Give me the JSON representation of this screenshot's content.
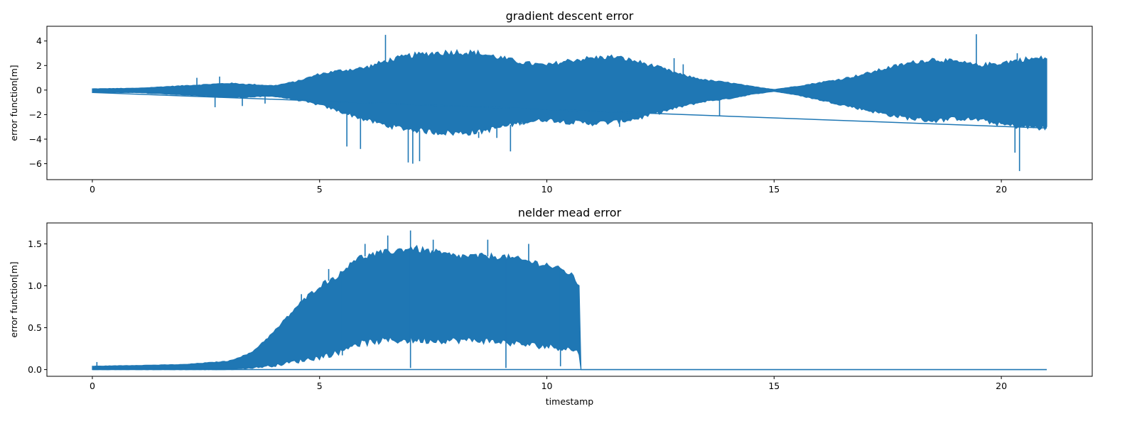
{
  "chart_data": [
    {
      "type": "line",
      "title": "gradient descent error",
      "xlabel": "",
      "ylabel": "error function[m]",
      "xlim": [
        -1,
        22
      ],
      "ylim": [
        -7.3,
        5.2
      ],
      "xticks": [
        0,
        5,
        10,
        15,
        20
      ],
      "yticks": [
        -6,
        -4,
        -2,
        0,
        2,
        4
      ],
      "xtick_labels": [
        "0",
        "5",
        "10",
        "15",
        "20"
      ],
      "ytick_labels": [
        "−6",
        "−4",
        "−2",
        "0",
        "2",
        "4"
      ],
      "grid": false,
      "color": "#1f77b4",
      "series_style": "dense oscillation; filled envelope shown",
      "envelope": {
        "x": [
          0,
          1,
          2,
          3,
          4,
          4.5,
          5,
          5.5,
          6,
          6.5,
          7,
          7.5,
          8,
          8.5,
          9,
          9.5,
          10,
          10.5,
          11,
          11.5,
          12,
          12.5,
          13,
          13.5,
          14,
          14.5,
          15,
          15.5,
          16,
          16.5,
          17,
          17.5,
          18,
          18.5,
          19,
          19.5,
          20,
          20.5,
          21
        ],
        "upper": [
          0.1,
          0.15,
          0.35,
          0.55,
          0.35,
          0.7,
          1.3,
          1.6,
          1.8,
          2.4,
          2.8,
          3.0,
          3.1,
          3.0,
          2.6,
          2.2,
          2.0,
          2.4,
          2.6,
          2.7,
          2.3,
          1.8,
          1.2,
          0.8,
          0.6,
          0.3,
          0.05,
          0.3,
          0.6,
          0.9,
          1.3,
          1.8,
          2.2,
          2.5,
          2.3,
          2.0,
          2.2,
          2.5,
          2.6
        ],
        "lower": [
          -0.2,
          -0.2,
          -0.4,
          -0.6,
          -0.5,
          -0.8,
          -1.2,
          -1.8,
          -2.4,
          -2.9,
          -3.2,
          -3.4,
          -3.5,
          -3.4,
          -3.0,
          -2.6,
          -2.4,
          -2.6,
          -2.7,
          -2.6,
          -2.3,
          -1.8,
          -1.3,
          -0.9,
          -0.7,
          -0.35,
          -0.1,
          -0.4,
          -0.8,
          -1.2,
          -1.6,
          -2.0,
          -2.3,
          -2.5,
          -2.3,
          -2.4,
          -2.8,
          -3.0,
          -3.1
        ]
      },
      "spikes": [
        {
          "x": 6.45,
          "y": 4.5
        },
        {
          "x": 5.6,
          "y": -4.6
        },
        {
          "x": 5.9,
          "y": -4.8
        },
        {
          "x": 6.95,
          "y": -5.9
        },
        {
          "x": 7.05,
          "y": -6.0
        },
        {
          "x": 7.2,
          "y": -5.8
        },
        {
          "x": 9.2,
          "y": -5.0
        },
        {
          "x": 12.8,
          "y": 2.6
        },
        {
          "x": 13.0,
          "y": 2.1
        },
        {
          "x": 13.8,
          "y": -2.1
        },
        {
          "x": 19.45,
          "y": 4.55
        },
        {
          "x": 20.3,
          "y": -5.1
        },
        {
          "x": 20.4,
          "y": -6.6
        },
        {
          "x": 20.35,
          "y": 3.0
        },
        {
          "x": 2.3,
          "y": 1.0
        },
        {
          "x": 2.8,
          "y": 1.1
        },
        {
          "x": 2.7,
          "y": -1.4
        },
        {
          "x": 3.3,
          "y": -1.3
        },
        {
          "x": 3.8,
          "y": -1.1
        },
        {
          "x": 9.45,
          "y": -2.8
        },
        {
          "x": 11.6,
          "y": -3.0
        },
        {
          "x": 8.9,
          "y": -3.9
        },
        {
          "x": 8.5,
          "y": -3.9
        }
      ]
    },
    {
      "type": "line",
      "title": "nelder mead error",
      "xlabel": "timestamp",
      "ylabel": "error function[m]",
      "xlim": [
        -1,
        22
      ],
      "ylim": [
        -0.08,
        1.75
      ],
      "xticks": [
        0,
        5,
        10,
        15,
        20
      ],
      "yticks": [
        0.0,
        0.5,
        1.0,
        1.5
      ],
      "xtick_labels": [
        "0",
        "5",
        "10",
        "15",
        "20"
      ],
      "ytick_labels": [
        "0.0",
        "0.5",
        "1.0",
        "1.5"
      ],
      "grid": false,
      "color": "#1f77b4",
      "series_style": "dense oscillation; filled envelope shown",
      "envelope": {
        "x": [
          0,
          1,
          2,
          3,
          3.5,
          4,
          4.5,
          5,
          5.5,
          5.7,
          6,
          6.5,
          7,
          7.5,
          8,
          8.5,
          9,
          9.5,
          10,
          10.5,
          10.72,
          10.73,
          21
        ],
        "upper": [
          0.04,
          0.05,
          0.06,
          0.1,
          0.2,
          0.45,
          0.75,
          1.0,
          1.15,
          1.3,
          1.35,
          1.4,
          1.45,
          1.4,
          1.35,
          1.35,
          1.35,
          1.3,
          1.25,
          1.15,
          1.0,
          0.0,
          0.0
        ],
        "lower": [
          0.0,
          0.0,
          0.0,
          0.0,
          0.02,
          0.05,
          0.1,
          0.15,
          0.22,
          0.3,
          0.32,
          0.35,
          0.35,
          0.35,
          0.35,
          0.35,
          0.33,
          0.3,
          0.28,
          0.25,
          0.2,
          0.0,
          0.0
        ]
      },
      "spikes": [
        {
          "x": 6.5,
          "y": 1.6
        },
        {
          "x": 7.0,
          "y": 1.66
        },
        {
          "x": 7.5,
          "y": 1.55
        },
        {
          "x": 6.0,
          "y": 1.5
        },
        {
          "x": 8.7,
          "y": 1.55
        },
        {
          "x": 9.6,
          "y": 1.5
        },
        {
          "x": 5.2,
          "y": 1.2
        },
        {
          "x": 4.6,
          "y": 0.9
        },
        {
          "x": 0.1,
          "y": 0.09
        },
        {
          "x": 7.0,
          "y": 0.02
        },
        {
          "x": 9.1,
          "y": 0.02
        },
        {
          "x": 10.3,
          "y": 0.04
        },
        {
          "x": 5.5,
          "y": 0.17
        }
      ]
    }
  ]
}
